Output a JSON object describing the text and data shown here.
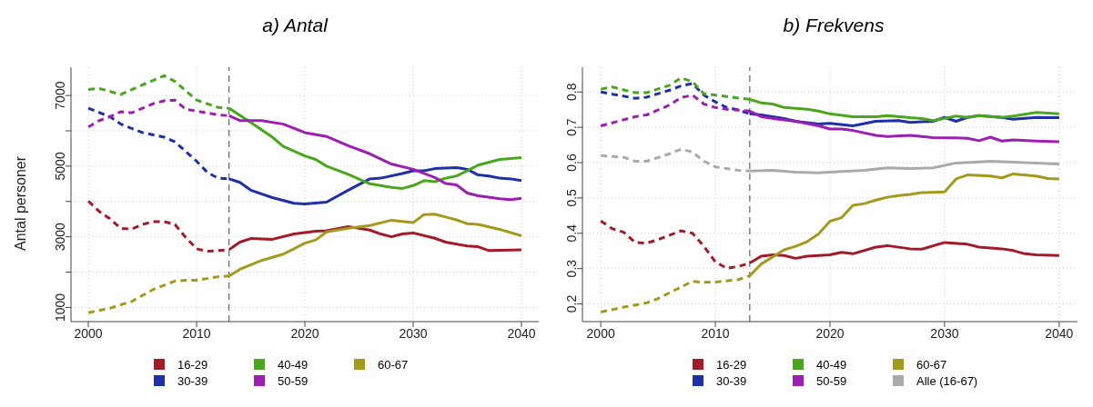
{
  "chart_data": [
    {
      "type": "line",
      "title": "a) Antal",
      "ylabel": "Antal personer",
      "xlim": [
        1998.4,
        2041.6
      ],
      "xticks": [
        2000,
        2010,
        2020,
        2030,
        2040
      ],
      "ylim": [
        600,
        7800
      ],
      "yticks": [
        1000,
        {
          "value": 2000,
          "label": null
        },
        3000,
        {
          "value": 4000,
          "label": null
        },
        5000,
        {
          "value": 6000,
          "label": null
        },
        7000
      ],
      "grid": true,
      "legend": "bottom",
      "ref_lines": [
        {
          "axis": "x",
          "value": 2013,
          "label": null,
          "color": "#444444",
          "line_style": "dashed"
        }
      ],
      "series": [
        {
          "color": "#a31a2a",
          "line_style": "dashed",
          "x": [
            2000,
            2001,
            2002,
            2003,
            2004,
            2005,
            2006,
            2007,
            2008,
            2009,
            2010,
            2011,
            2012,
            2013
          ],
          "values": [
            4010,
            3720,
            3510,
            3240,
            3220,
            3350,
            3430,
            3430,
            3350,
            2980,
            2660,
            2590,
            2610,
            2640
          ]
        },
        {
          "name": "16-29",
          "color": "#a31a2a",
          "line_style": "solid",
          "x": [
            2013,
            2014,
            2015,
            2017,
            2019,
            2020,
            2021,
            2022,
            2024,
            2025,
            2026,
            2027,
            2028,
            2029,
            2030,
            2032,
            2033,
            2035,
            2036,
            2037,
            2038,
            2040
          ],
          "values": [
            2640,
            2850,
            2950,
            2930,
            3080,
            3120,
            3160,
            3170,
            3290,
            3240,
            3190,
            3080,
            3000,
            3080,
            3110,
            2960,
            2850,
            2740,
            2720,
            2610,
            2620,
            2630
          ]
        },
        {
          "color": "#1f2fa8",
          "line_style": "dashed",
          "x": [
            2000,
            2002,
            2003,
            2005,
            2007,
            2008,
            2010,
            2011,
            2012,
            2013
          ],
          "values": [
            6640,
            6400,
            6190,
            5950,
            5820,
            5690,
            5140,
            4820,
            4660,
            4640
          ]
        },
        {
          "name": "30-39",
          "color": "#1f2fa8",
          "line_style": "solid",
          "x": [
            2013,
            2014,
            2015,
            2017,
            2019,
            2020,
            2022,
            2024,
            2026,
            2027,
            2029,
            2030,
            2031,
            2032,
            2034,
            2035,
            2036,
            2037,
            2038,
            2039,
            2040
          ],
          "values": [
            4640,
            4540,
            4320,
            4110,
            3950,
            3930,
            3980,
            4320,
            4640,
            4660,
            4790,
            4870,
            4870,
            4930,
            4960,
            4910,
            4750,
            4720,
            4660,
            4640,
            4590
          ]
        },
        {
          "color": "#4aa61c",
          "line_style": "dashed",
          "x": [
            2000,
            2001,
            2003,
            2005,
            2007,
            2008,
            2010,
            2012,
            2013
          ],
          "values": [
            7170,
            7200,
            7030,
            7300,
            7560,
            7400,
            6870,
            6660,
            6640
          ]
        },
        {
          "name": "40-49",
          "color": "#4aa61c",
          "line_style": "solid",
          "x": [
            2013,
            2015,
            2017,
            2018,
            2020,
            2021,
            2022,
            2024,
            2026,
            2028,
            2029,
            2030,
            2031,
            2032,
            2033,
            2034,
            2035,
            2036,
            2038,
            2040
          ],
          "values": [
            6640,
            6240,
            5820,
            5560,
            5290,
            5190,
            5000,
            4770,
            4500,
            4400,
            4370,
            4450,
            4590,
            4560,
            4660,
            4720,
            4870,
            5030,
            5190,
            5240
          ]
        },
        {
          "color": "#9b1fb0",
          "line_style": "dashed",
          "x": [
            2000,
            2001,
            2002,
            2003,
            2004,
            2006,
            2007,
            2008,
            2009,
            2010,
            2012,
            2013
          ],
          "values": [
            6110,
            6290,
            6400,
            6540,
            6510,
            6770,
            6850,
            6870,
            6610,
            6560,
            6450,
            6430
          ]
        },
        {
          "name": "50-59",
          "color": "#9b1fb0",
          "line_style": "solid",
          "x": [
            2013,
            2014,
            2016,
            2018,
            2020,
            2022,
            2024,
            2026,
            2028,
            2030,
            2032,
            2033,
            2034,
            2035,
            2036,
            2038,
            2039,
            2040
          ],
          "values": [
            6430,
            6290,
            6290,
            6190,
            5950,
            5840,
            5580,
            5350,
            5060,
            4910,
            4680,
            4510,
            4470,
            4240,
            4160,
            4080,
            4050,
            4090
          ]
        },
        {
          "color": "#a39a1c",
          "line_style": "dashed",
          "x": [
            2000,
            2002,
            2004,
            2006,
            2008,
            2009,
            2010,
            2012,
            2013
          ],
          "values": [
            850,
            980,
            1170,
            1510,
            1750,
            1770,
            1770,
            1870,
            1890
          ]
        },
        {
          "name": "60-67",
          "color": "#a39a1c",
          "line_style": "solid",
          "x": [
            2013,
            2014,
            2016,
            2018,
            2019,
            2020,
            2021,
            2022,
            2024,
            2026,
            2028,
            2030,
            2031,
            2032,
            2033,
            2034,
            2035,
            2036,
            2038,
            2040
          ],
          "values": [
            1890,
            2080,
            2330,
            2510,
            2660,
            2820,
            2910,
            3140,
            3240,
            3320,
            3470,
            3400,
            3630,
            3640,
            3560,
            3480,
            3370,
            3350,
            3210,
            3030
          ]
        }
      ]
    },
    {
      "type": "line",
      "title": "b) Frekvens",
      "xlim": [
        1998.4,
        2041.6
      ],
      "xticks": [
        2000,
        2010,
        2020,
        2030,
        2040
      ],
      "ylim": [
        0.15,
        0.87
      ],
      "yticks": [
        0.2,
        0.3,
        0.4,
        0.5,
        0.6,
        0.7,
        0.8
      ],
      "grid": true,
      "legend": "bottom",
      "ref_lines": [
        {
          "axis": "x",
          "value": 2013,
          "label": null,
          "color": "#444444",
          "line_style": "dashed"
        }
      ],
      "series": [
        {
          "color": "#a31a2a",
          "line_style": "dashed",
          "x": [
            2000,
            2001,
            2002,
            2003,
            2004,
            2005,
            2007,
            2008,
            2009,
            2010,
            2011,
            2012,
            2013
          ],
          "values": [
            0.435,
            0.413,
            0.403,
            0.374,
            0.372,
            0.382,
            0.407,
            0.4,
            0.363,
            0.319,
            0.301,
            0.306,
            0.316
          ]
        },
        {
          "name": "16-29",
          "color": "#a31a2a",
          "line_style": "solid",
          "x": [
            2013,
            2014,
            2015,
            2016,
            2017,
            2018,
            2020,
            2021,
            2022,
            2024,
            2025,
            2027,
            2028,
            2030,
            2032,
            2033,
            2035,
            2036,
            2037,
            2038,
            2040
          ],
          "values": [
            0.316,
            0.335,
            0.339,
            0.337,
            0.329,
            0.335,
            0.339,
            0.346,
            0.342,
            0.361,
            0.365,
            0.356,
            0.355,
            0.374,
            0.369,
            0.361,
            0.356,
            0.351,
            0.342,
            0.339,
            0.337
          ]
        },
        {
          "color": "#1f2fa8",
          "line_style": "dashed",
          "x": [
            2000,
            2003,
            2004,
            2006,
            2007,
            2008,
            2009,
            2010,
            2011,
            2012,
            2013
          ],
          "values": [
            0.8,
            0.782,
            0.785,
            0.805,
            0.817,
            0.824,
            0.791,
            0.772,
            0.756,
            0.749,
            0.738
          ]
        },
        {
          "name": "30-39",
          "color": "#1f2fa8",
          "line_style": "solid",
          "x": [
            2013,
            2014,
            2015,
            2016,
            2017,
            2019,
            2020,
            2022,
            2024,
            2026,
            2027,
            2029,
            2030,
            2031,
            2032,
            2033,
            2035,
            2036,
            2038,
            2040
          ],
          "values": [
            0.738,
            0.735,
            0.73,
            0.725,
            0.717,
            0.709,
            0.711,
            0.704,
            0.717,
            0.719,
            0.714,
            0.717,
            0.728,
            0.717,
            0.728,
            0.733,
            0.728,
            0.723,
            0.728,
            0.727
          ]
        },
        {
          "color": "#4aa61c",
          "line_style": "dashed",
          "x": [
            2000,
            2001,
            2003,
            2004,
            2006,
            2007,
            2008,
            2009,
            2011,
            2013
          ],
          "values": [
            0.808,
            0.814,
            0.798,
            0.798,
            0.819,
            0.84,
            0.829,
            0.795,
            0.787,
            0.779
          ]
        },
        {
          "name": "40-49",
          "color": "#4aa61c",
          "line_style": "solid",
          "x": [
            2013,
            2014,
            2015,
            2016,
            2018,
            2019,
            2020,
            2022,
            2024,
            2025,
            2027,
            2028,
            2029,
            2030,
            2031,
            2032,
            2033,
            2035,
            2036,
            2038,
            2040
          ],
          "values": [
            0.779,
            0.769,
            0.766,
            0.756,
            0.751,
            0.746,
            0.738,
            0.73,
            0.73,
            0.733,
            0.727,
            0.725,
            0.719,
            0.725,
            0.732,
            0.728,
            0.733,
            0.728,
            0.732,
            0.742,
            0.738
          ]
        },
        {
          "color": "#9b1fb0",
          "line_style": "dashed",
          "x": [
            2000,
            2003,
            2004,
            2006,
            2007,
            2008,
            2009,
            2010,
            2011,
            2013
          ],
          "values": [
            0.704,
            0.73,
            0.735,
            0.763,
            0.784,
            0.791,
            0.766,
            0.756,
            0.751,
            0.746
          ]
        },
        {
          "name": "50-59",
          "color": "#9b1fb0",
          "line_style": "solid",
          "x": [
            2013,
            2014,
            2015,
            2017,
            2019,
            2020,
            2021,
            2022,
            2024,
            2025,
            2027,
            2029,
            2031,
            2032,
            2033,
            2034,
            2035,
            2036,
            2038,
            2040
          ],
          "values": [
            0.746,
            0.73,
            0.725,
            0.717,
            0.704,
            0.695,
            0.695,
            0.691,
            0.677,
            0.674,
            0.677,
            0.671,
            0.67,
            0.669,
            0.662,
            0.672,
            0.661,
            0.664,
            0.661,
            0.659
          ]
        },
        {
          "color": "#a39a1c",
          "line_style": "dashed",
          "x": [
            2000,
            2002,
            2004,
            2005,
            2007,
            2008,
            2009,
            2010,
            2012,
            2013
          ],
          "values": [
            0.177,
            0.191,
            0.203,
            0.215,
            0.248,
            0.264,
            0.261,
            0.262,
            0.269,
            0.28
          ]
        },
        {
          "name": "60-67",
          "color": "#a39a1c",
          "line_style": "solid",
          "x": [
            2013,
            2014,
            2016,
            2017,
            2018,
            2019,
            2020,
            2021,
            2022,
            2023,
            2024,
            2025,
            2026,
            2027,
            2028,
            2030,
            2031,
            2032,
            2034,
            2035,
            2036,
            2038,
            2039,
            2040
          ],
          "values": [
            0.28,
            0.313,
            0.353,
            0.363,
            0.376,
            0.398,
            0.434,
            0.444,
            0.479,
            0.484,
            0.494,
            0.502,
            0.507,
            0.51,
            0.515,
            0.517,
            0.554,
            0.565,
            0.562,
            0.557,
            0.568,
            0.562,
            0.555,
            0.554
          ]
        },
        {
          "color": "#aaaaaa",
          "line_style": "dashed",
          "x": [
            2000,
            2002,
            2003,
            2004,
            2006,
            2007,
            2008,
            2009,
            2010,
            2012,
            2013
          ],
          "values": [
            0.62,
            0.615,
            0.604,
            0.604,
            0.625,
            0.638,
            0.63,
            0.604,
            0.588,
            0.578,
            0.576
          ]
        },
        {
          "name": "Alle (16-67)",
          "color": "#aaaaaa",
          "line_style": "solid",
          "x": [
            2013,
            2015,
            2017,
            2019,
            2021,
            2023,
            2025,
            2027,
            2029,
            2031,
            2033,
            2034,
            2036,
            2038,
            2040
          ],
          "values": [
            0.576,
            0.578,
            0.573,
            0.571,
            0.575,
            0.578,
            0.585,
            0.583,
            0.585,
            0.599,
            0.602,
            0.604,
            0.601,
            0.599,
            0.596
          ]
        }
      ]
    }
  ]
}
